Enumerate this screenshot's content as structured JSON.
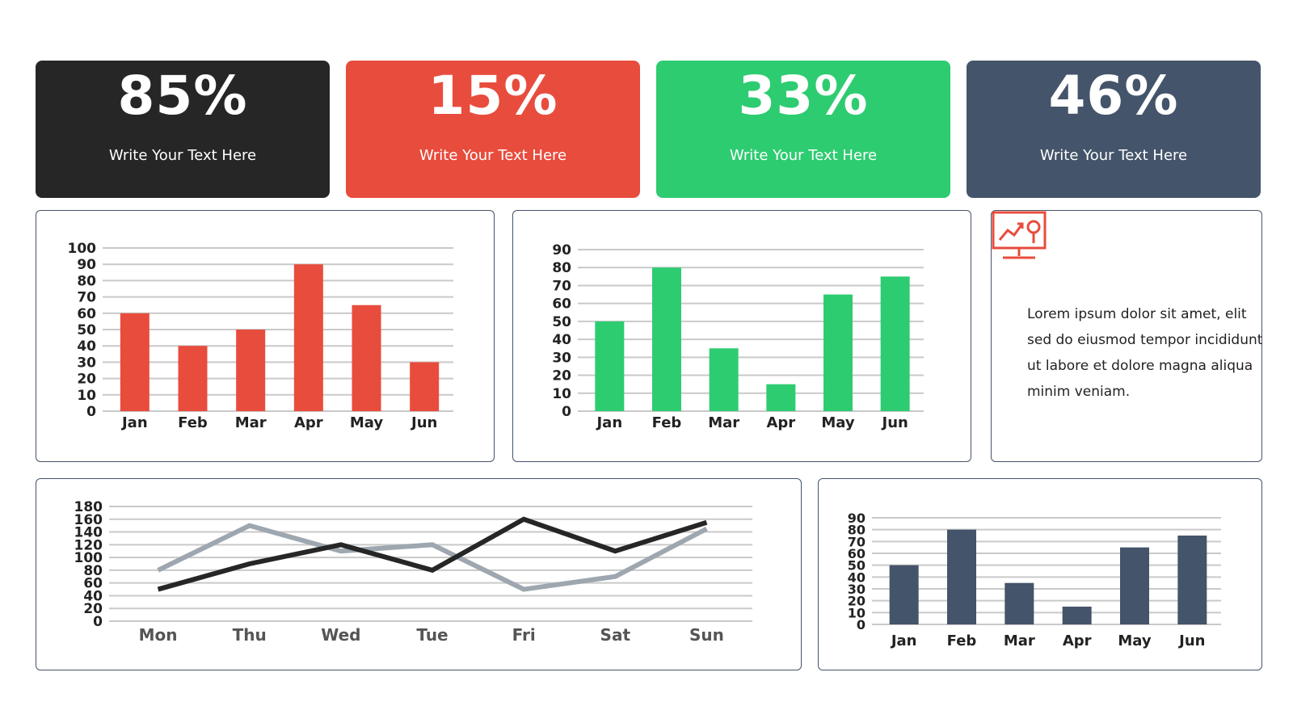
{
  "stats": [
    {
      "value": "85%",
      "label": "Write Your Text Here",
      "color": "#262626"
    },
    {
      "value": "15%",
      "label": "Write Your Text Here",
      "color": "#e84c3d"
    },
    {
      "value": "33%",
      "label": "Write Your Text Here",
      "color": "#2ecc71"
    },
    {
      "value": "46%",
      "label": "Write Your Text Here",
      "color": "#44546a"
    }
  ],
  "info": {
    "icon": "presentation-chart-icon",
    "text": "Lorem ipsum dolor sit amet, elit sed do eiusmod tempor incididunt ut labore et dolore magna aliqua minim veniam."
  },
  "chart_data": [
    {
      "type": "bar",
      "categories": [
        "Jan",
        "Feb",
        "Mar",
        "Apr",
        "May",
        "Jun"
      ],
      "values": [
        60,
        40,
        50,
        90,
        65,
        30
      ],
      "ylim": [
        0,
        100
      ],
      "ticks": [
        0,
        10,
        20,
        30,
        40,
        50,
        60,
        70,
        80,
        90,
        100
      ],
      "color": "#e84c3d",
      "grid": true
    },
    {
      "type": "bar",
      "categories": [
        "Jan",
        "Feb",
        "Mar",
        "Apr",
        "May",
        "Jun"
      ],
      "values": [
        50,
        80,
        35,
        15,
        65,
        75
      ],
      "ylim": [
        0,
        90
      ],
      "ticks": [
        0,
        10,
        20,
        30,
        40,
        50,
        60,
        70,
        80,
        90
      ],
      "color": "#2ecc71",
      "grid": true
    },
    {
      "type": "line",
      "categories": [
        "Mon",
        "Thu",
        "Wed",
        "Tue",
        "Fri",
        "Sat",
        "Sun"
      ],
      "series": [
        {
          "values": [
            80,
            150,
            110,
            120,
            50,
            70,
            145
          ],
          "color": "#9ea7b0"
        },
        {
          "values": [
            50,
            90,
            120,
            80,
            160,
            110,
            155
          ],
          "color": "#262626"
        }
      ],
      "ylim": [
        0,
        180
      ],
      "ticks": [
        0,
        20,
        40,
        60,
        80,
        100,
        120,
        140,
        160,
        180
      ],
      "grid": true
    },
    {
      "type": "bar",
      "categories": [
        "Jan",
        "Feb",
        "Mar",
        "Apr",
        "May",
        "Jun"
      ],
      "values": [
        50,
        80,
        35,
        15,
        65,
        75
      ],
      "ylim": [
        0,
        90
      ],
      "ticks": [
        0,
        10,
        20,
        30,
        40,
        50,
        60,
        70,
        80,
        90
      ],
      "color": "#44546a",
      "grid": true
    }
  ]
}
